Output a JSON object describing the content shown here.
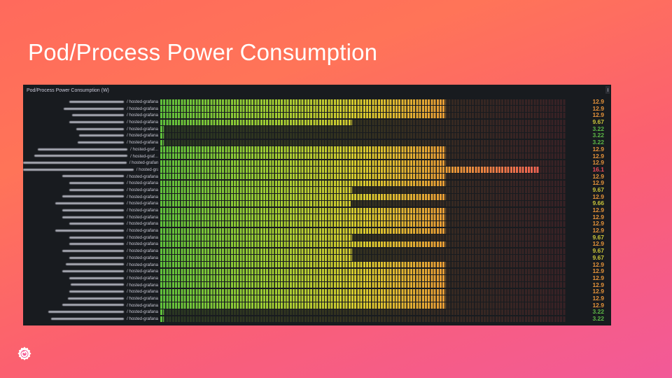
{
  "slide": {
    "title": "Pod/Process Power Consumption"
  },
  "panel": {
    "title": "Pod/Process Power Consumption (W)",
    "unit": "W",
    "scale": {
      "min": 3.1,
      "max": 17.0
    },
    "rows": [
      {
        "label_suffix": " / hosted-grafana",
        "value": "12.9",
        "color": "#e8943a"
      },
      {
        "label_suffix": " / hosted-grafana",
        "value": "12.9",
        "color": "#e8943a"
      },
      {
        "label_suffix": " / hosted-grafana",
        "value": "12.9",
        "color": "#e8943a"
      },
      {
        "label_suffix": " / hosted-grafana",
        "value": "9.67",
        "color": "#c9c43a"
      },
      {
        "label_suffix": " / hosted-grafana",
        "value": "3.22",
        "color": "#5cb846"
      },
      {
        "label_suffix": " / hosted-grafana",
        "value": "3.22",
        "color": "#5cb846"
      },
      {
        "label_suffix": " / hosted-grafana",
        "value": "3.22",
        "color": "#5cb846"
      },
      {
        "label_suffix": " / hosted-graf...",
        "value": "12.9",
        "color": "#e8943a"
      },
      {
        "label_suffix": " / hosted-graf...",
        "value": "12.9",
        "color": "#e8943a"
      },
      {
        "label_suffix": " / hosted-grafana",
        "value": "12.9",
        "color": "#e8943a"
      },
      {
        "label_suffix": " / hosted-grafana",
        "value": "16.1",
        "color": "#f04b5c"
      },
      {
        "label_suffix": " / hosted-grafana",
        "value": "12.9",
        "color": "#e8943a"
      },
      {
        "label_suffix": " / hosted-grafana",
        "value": "12.9",
        "color": "#e8943a"
      },
      {
        "label_suffix": " / hosted-grafana",
        "value": "9.67",
        "color": "#c9c43a"
      },
      {
        "label_suffix": " / hosted-grafana",
        "value": "12.9",
        "color": "#e8943a"
      },
      {
        "label_suffix": " / hosted-grafana",
        "value": "9.66",
        "color": "#c9c43a"
      },
      {
        "label_suffix": " / hosted-grafana",
        "value": "12.9",
        "color": "#e8943a"
      },
      {
        "label_suffix": " / hosted-grafana",
        "value": "12.9",
        "color": "#e8943a"
      },
      {
        "label_suffix": " / hosted-grafana",
        "value": "12.9",
        "color": "#e8943a"
      },
      {
        "label_suffix": " / hosted-grafana",
        "value": "12.9",
        "color": "#e8943a"
      },
      {
        "label_suffix": " / hosted-grafana",
        "value": "9.67",
        "color": "#c9c43a"
      },
      {
        "label_suffix": " / hosted-grafana",
        "value": "12.9",
        "color": "#e8943a"
      },
      {
        "label_suffix": " / hosted-grafana",
        "value": "9.67",
        "color": "#c9c43a"
      },
      {
        "label_suffix": " / hosted-grafana",
        "value": "9.67",
        "color": "#c9c43a"
      },
      {
        "label_suffix": " / hosted-grafana",
        "value": "12.9",
        "color": "#e8943a"
      },
      {
        "label_suffix": " / hosted-grafana",
        "value": "12.9",
        "color": "#e8943a"
      },
      {
        "label_suffix": " / hosted-grafana",
        "value": "12.9",
        "color": "#e8943a"
      },
      {
        "label_suffix": " / hosted-grafana",
        "value": "12.9",
        "color": "#e8943a"
      },
      {
        "label_suffix": " / hosted-grafana",
        "value": "12.9",
        "color": "#e8943a"
      },
      {
        "label_suffix": " / hosted-grafana",
        "value": "12.9",
        "color": "#e8943a"
      },
      {
        "label_suffix": " / hosted-grafana",
        "value": "12.9",
        "color": "#e8943a"
      },
      {
        "label_suffix": " / hosted-grafana",
        "value": "3.22",
        "color": "#5cb846"
      },
      {
        "label_suffix": " / hosted-grafana",
        "value": "3.22",
        "color": "#5cb846"
      }
    ]
  },
  "logo": {
    "icon": "grafana-logo-icon"
  },
  "chart_data": {
    "type": "bar",
    "orientation": "horizontal",
    "style": "bar-gauge-lcd",
    "title": "Pod/Process Power Consumption (W)",
    "categories": [
      "(redacted) / hosted-grafana",
      "(redacted) / hosted-grafana",
      "(redacted) / hosted-grafana",
      "(redacted) / hosted-grafana",
      "(redacted) / hosted-grafana",
      "(redacted) / hosted-grafana",
      "(redacted) / hosted-grafana",
      "(redacted) / hosted-graf...",
      "(redacted) / hosted-graf...",
      "(redacted) / hosted-grafana",
      "(redacted) / hosted-grafana",
      "(redacted) / hosted-grafana",
      "(redacted) / hosted-grafana",
      "(redacted) / hosted-grafana",
      "(redacted) / hosted-grafana",
      "(redacted) / hosted-grafana",
      "(redacted) / hosted-grafana",
      "(redacted) / hosted-grafana",
      "(redacted) / hosted-grafana",
      "(redacted) / hosted-grafana",
      "(redacted) / hosted-grafana",
      "(redacted) / hosted-grafana",
      "(redacted) / hosted-grafana",
      "(redacted) / hosted-grafana",
      "(redacted) / hosted-grafana",
      "(redacted) / hosted-grafana",
      "(redacted) / hosted-grafana",
      "(redacted) / hosted-grafana",
      "(redacted) / hosted-grafana",
      "(redacted) / hosted-grafana",
      "(redacted) / hosted-grafana",
      "(redacted) / hosted-grafana",
      "(redacted) / hosted-grafana"
    ],
    "values": [
      12.9,
      12.9,
      12.9,
      9.67,
      3.22,
      3.22,
      3.22,
      12.9,
      12.9,
      12.9,
      16.1,
      12.9,
      12.9,
      9.67,
      12.9,
      9.66,
      12.9,
      12.9,
      12.9,
      12.9,
      9.67,
      12.9,
      9.67,
      9.67,
      12.9,
      12.9,
      12.9,
      12.9,
      12.9,
      12.9,
      12.9,
      3.22,
      3.22
    ],
    "xlabel": "",
    "ylabel": "",
    "unit": "W",
    "xlim": [
      3.1,
      17.0
    ],
    "color_scale": [
      "#5fbf3b",
      "#d9c92e",
      "#e89a35",
      "#f0555a"
    ]
  }
}
